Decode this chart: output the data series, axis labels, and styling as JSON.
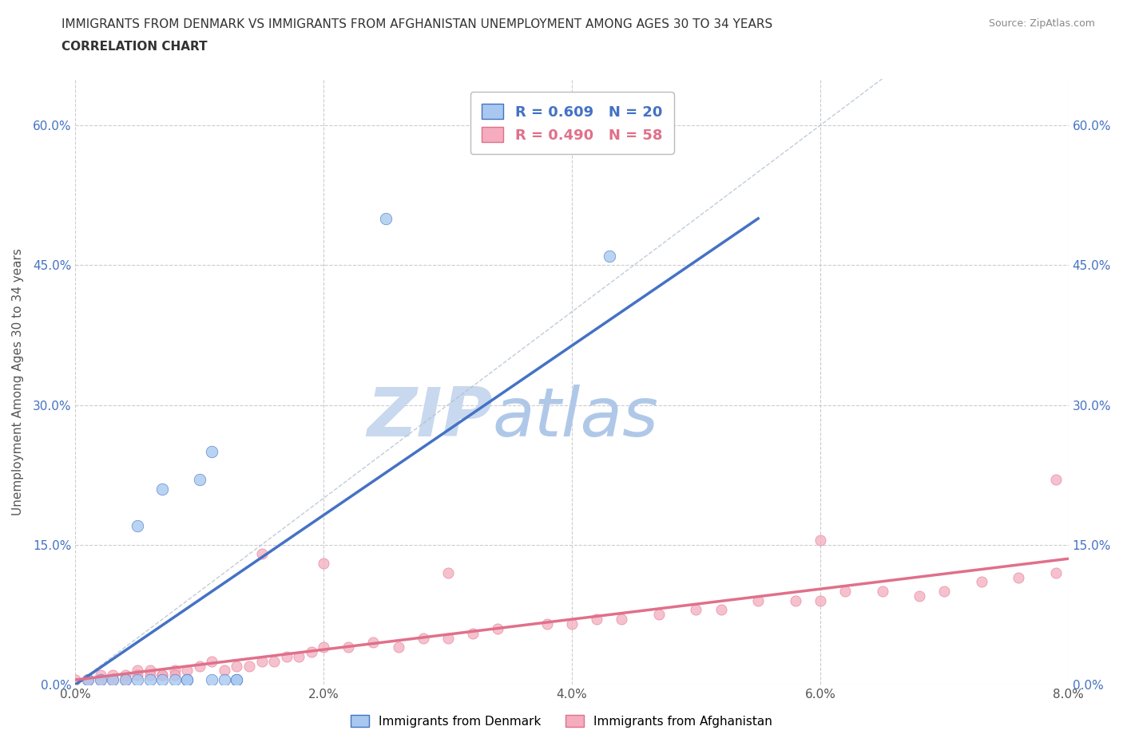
{
  "title_line1": "IMMIGRANTS FROM DENMARK VS IMMIGRANTS FROM AFGHANISTAN UNEMPLOYMENT AMONG AGES 30 TO 34 YEARS",
  "title_line2": "CORRELATION CHART",
  "source_text": "Source: ZipAtlas.com",
  "ylabel": "Unemployment Among Ages 30 to 34 years",
  "xlim": [
    0.0,
    0.08
  ],
  "ylim": [
    0.0,
    0.65
  ],
  "xticks": [
    0.0,
    0.02,
    0.04,
    0.06,
    0.08
  ],
  "xticklabels": [
    "0.0%",
    "2.0%",
    "4.0%",
    "6.0%",
    "8.0%"
  ],
  "yticks": [
    0.0,
    0.15,
    0.3,
    0.45,
    0.6
  ],
  "yticklabels": [
    "0.0%",
    "15.0%",
    "30.0%",
    "45.0%",
    "60.0%"
  ],
  "ytick_color": "#4472C4",
  "xtick_color": "#555555",
  "denmark_color": "#A8C8F0",
  "afghanistan_color": "#F4ACBE",
  "denmark_line_color": "#4472C4",
  "afghanistan_line_color": "#E0708A",
  "denmark_scatter_x": [
    0.001,
    0.002,
    0.003,
    0.004,
    0.005,
    0.006,
    0.007,
    0.008,
    0.009,
    0.01,
    0.011,
    0.012,
    0.013,
    0.005,
    0.007,
    0.009,
    0.011,
    0.013,
    0.025,
    0.043
  ],
  "denmark_scatter_y": [
    0.005,
    0.005,
    0.005,
    0.005,
    0.005,
    0.005,
    0.005,
    0.005,
    0.005,
    0.22,
    0.25,
    0.005,
    0.005,
    0.17,
    0.21,
    0.005,
    0.005,
    0.005,
    0.5,
    0.46
  ],
  "afghanistan_scatter_x": [
    0.001,
    0.002,
    0.003,
    0.004,
    0.005,
    0.006,
    0.007,
    0.008,
    0.009,
    0.01,
    0.011,
    0.012,
    0.013,
    0.014,
    0.015,
    0.016,
    0.017,
    0.018,
    0.019,
    0.02,
    0.022,
    0.024,
    0.026,
    0.028,
    0.03,
    0.032,
    0.034,
    0.038,
    0.04,
    0.042,
    0.044,
    0.047,
    0.05,
    0.052,
    0.055,
    0.058,
    0.06,
    0.062,
    0.065,
    0.068,
    0.07,
    0.073,
    0.076,
    0.079,
    0.0,
    0.001,
    0.002,
    0.003,
    0.004,
    0.005,
    0.006,
    0.007,
    0.008,
    0.015,
    0.02,
    0.03,
    0.079,
    0.06
  ],
  "afghanistan_scatter_y": [
    0.005,
    0.01,
    0.01,
    0.01,
    0.015,
    0.015,
    0.01,
    0.015,
    0.015,
    0.02,
    0.025,
    0.015,
    0.02,
    0.02,
    0.025,
    0.025,
    0.03,
    0.03,
    0.035,
    0.04,
    0.04,
    0.045,
    0.04,
    0.05,
    0.05,
    0.055,
    0.06,
    0.065,
    0.065,
    0.07,
    0.07,
    0.075,
    0.08,
    0.08,
    0.09,
    0.09,
    0.09,
    0.1,
    0.1,
    0.095,
    0.1,
    0.11,
    0.115,
    0.12,
    0.005,
    0.005,
    0.005,
    0.005,
    0.005,
    0.01,
    0.01,
    0.01,
    0.01,
    0.14,
    0.13,
    0.12,
    0.22,
    0.155
  ],
  "denmark_line_x": [
    0.0,
    0.055
  ],
  "denmark_line_y": [
    0.0,
    0.5
  ],
  "afghanistan_line_x": [
    0.0,
    0.08
  ],
  "afghanistan_line_y": [
    0.005,
    0.135
  ],
  "diag_line_x": [
    0.0,
    0.065
  ],
  "diag_line_y": [
    0.0,
    0.65
  ],
  "watermark_zip": "ZIP",
  "watermark_atlas": "atlas",
  "watermark_color_zip": "#C8D8EE",
  "watermark_color_atlas": "#B0C8E8",
  "background_color": "#FFFFFF",
  "grid_color": "#CCCCCC",
  "legend_denmark_label": "R = 0.609   N = 20",
  "legend_afghanistan_label": "R = 0.490   N = 58",
  "bottom_legend_denmark": "Immigrants from Denmark",
  "bottom_legend_afghanistan": "Immigrants from Afghanistan"
}
